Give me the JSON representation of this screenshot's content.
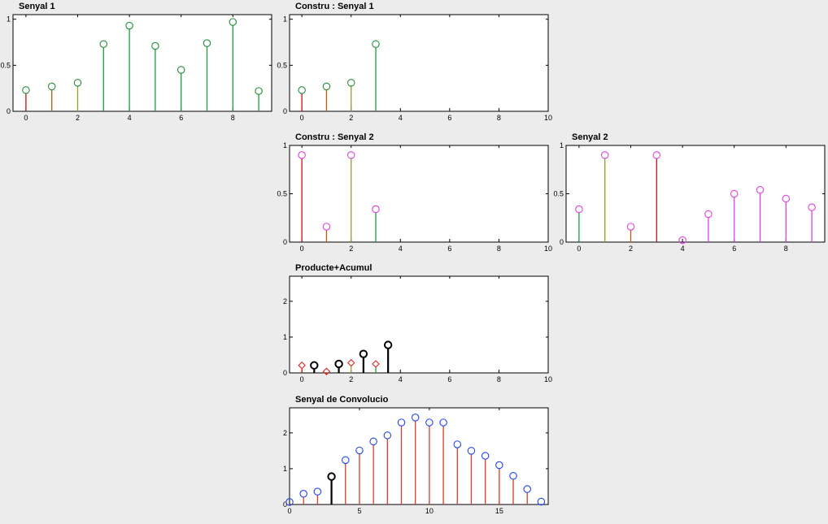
{
  "colors": {
    "green": "#1f8f3a",
    "magenta": "#e040e0",
    "blue": "#2244ee",
    "red_line": "#e03a2a",
    "black": "#000000",
    "red_marker": "#dd2222",
    "stem_palette": [
      "#cc1111",
      "#c05a10",
      "#99a020",
      "#1f9a3a"
    ]
  },
  "chart_data": [
    {
      "id": "senyal1",
      "type": "stem",
      "title": "Senyal 1",
      "xlim": [
        -0.5,
        9.5
      ],
      "ylim": [
        0,
        1.05
      ],
      "xticks": [
        0,
        2,
        4,
        6,
        8
      ],
      "yticks": [
        0,
        0.5,
        1
      ],
      "xtick_labels": [
        "0",
        "2",
        "4",
        "6",
        "8"
      ],
      "ytick_labels": [
        "0",
        "0.5",
        "1"
      ],
      "series": [
        {
          "marker": "circle",
          "marker_color": "#1f8f3a",
          "x": [
            0,
            1,
            2,
            3,
            4,
            5,
            6,
            7,
            8,
            9
          ],
          "y": [
            0.23,
            0.27,
            0.31,
            0.73,
            0.93,
            0.71,
            0.45,
            0.74,
            0.97,
            0.22
          ],
          "stem_colors": [
            "#cc1111",
            "#c05a10",
            "#99a020",
            "#1f9a3a",
            "#1f9a3a",
            "#1f9a3a",
            "#1f9a3a",
            "#1f9a3a",
            "#1f9a3a",
            "#1f9a3a"
          ]
        }
      ]
    },
    {
      "id": "constru1",
      "type": "stem",
      "title": "Constru : Senyal 1",
      "xlim": [
        -0.5,
        10
      ],
      "ylim": [
        0,
        1.05
      ],
      "xticks": [
        0,
        2,
        4,
        6,
        8,
        10
      ],
      "yticks": [
        0,
        0.5,
        1
      ],
      "xtick_labels": [
        "0",
        "2",
        "4",
        "6",
        "8",
        "10"
      ],
      "ytick_labels": [
        "0",
        "0.5",
        "1"
      ],
      "series": [
        {
          "marker": "circle",
          "marker_color": "#1f8f3a",
          "x": [
            0,
            1,
            2,
            3
          ],
          "y": [
            0.23,
            0.27,
            0.31,
            0.73
          ],
          "stem_colors": [
            "#cc1111",
            "#c05a10",
            "#99a020",
            "#1f9a3a"
          ]
        }
      ]
    },
    {
      "id": "constru2",
      "type": "stem",
      "title": "Constru : Senyal 2",
      "xlim": [
        -0.5,
        10
      ],
      "ylim": [
        0,
        1.0
      ],
      "xticks": [
        0,
        2,
        4,
        6,
        8,
        10
      ],
      "yticks": [
        0,
        0.5,
        1
      ],
      "xtick_labels": [
        "0",
        "2",
        "4",
        "6",
        "8",
        "10"
      ],
      "ytick_labels": [
        "0",
        "0.5",
        "1"
      ],
      "series": [
        {
          "marker": "circle",
          "marker_color": "#e040e0",
          "x": [
            0,
            1,
            2,
            3
          ],
          "y": [
            0.9,
            0.16,
            0.9,
            0.34
          ],
          "stem_colors": [
            "#cc1111",
            "#c05a10",
            "#99a020",
            "#1f9a3a"
          ]
        }
      ]
    },
    {
      "id": "senyal2",
      "type": "stem",
      "title": "Senyal 2",
      "xlim": [
        -0.5,
        9.5
      ],
      "ylim": [
        0,
        1.0
      ],
      "xticks": [
        0,
        2,
        4,
        6,
        8
      ],
      "yticks": [
        0,
        0.5,
        1
      ],
      "xtick_labels": [
        "0",
        "2",
        "4",
        "6",
        "8"
      ],
      "ytick_labels": [
        "0",
        "0.5",
        "1"
      ],
      "series": [
        {
          "marker": "circle",
          "marker_color": "#e040e0",
          "x": [
            0,
            1,
            2,
            3,
            4,
            5,
            6,
            7,
            8,
            9
          ],
          "y": [
            0.34,
            0.9,
            0.16,
            0.9,
            0.02,
            0.29,
            0.5,
            0.54,
            0.45,
            0.36
          ],
          "stem_colors": [
            "#1f9a3a",
            "#99a020",
            "#c05a10",
            "#cc1111",
            "#e040e0",
            "#e040e0",
            "#e040e0",
            "#e040e0",
            "#e040e0",
            "#e040e0"
          ]
        }
      ]
    },
    {
      "id": "producte",
      "type": "stem",
      "title": "Producte+Acumul",
      "xlim": [
        -0.5,
        10
      ],
      "ylim": [
        0,
        2.7
      ],
      "xticks": [
        0,
        2,
        4,
        6,
        8,
        10
      ],
      "yticks": [
        0,
        1,
        2
      ],
      "xtick_labels": [
        "0",
        "2",
        "4",
        "6",
        "8",
        "10"
      ],
      "ytick_labels": [
        "0",
        "1",
        "2"
      ],
      "series": [
        {
          "name": "producte",
          "marker": "diamond",
          "marker_color": "#dd2222",
          "x": [
            0,
            1,
            2,
            3
          ],
          "y": [
            0.21,
            0.04,
            0.28,
            0.25
          ],
          "stem_colors": [
            "#cc1111",
            "#c05a10",
            "#99a020",
            "#1f9a3a"
          ]
        },
        {
          "name": "acumul",
          "marker": "circle",
          "marker_color": "#000000",
          "bold": true,
          "x": [
            0.5,
            1.5,
            2.5,
            3.5
          ],
          "y": [
            0.21,
            0.25,
            0.53,
            0.78
          ],
          "stem_colors": [
            "#000000",
            "#000000",
            "#000000",
            "#000000"
          ]
        }
      ]
    },
    {
      "id": "convolucio",
      "type": "stem",
      "title": "Senyal de Convolucio",
      "xlim": [
        0,
        18.5
      ],
      "ylim": [
        0,
        2.7
      ],
      "xticks": [
        0,
        5,
        10,
        15
      ],
      "yticks": [
        0,
        1,
        2
      ],
      "xtick_labels": [
        "0",
        "5",
        "10",
        "15"
      ],
      "ytick_labels": [
        "0",
        "1",
        "2"
      ],
      "series": [
        {
          "marker": "circle",
          "marker_color": "#2244ee",
          "stem_color": "#e03a2a",
          "x": [
            0,
            1,
            2,
            3,
            4,
            5,
            6,
            7,
            8,
            9,
            10,
            11,
            12,
            13,
            14,
            15,
            16,
            17,
            18
          ],
          "y": [
            0.07,
            0.3,
            0.36,
            0.78,
            1.24,
            1.51,
            1.76,
            1.93,
            2.29,
            2.43,
            2.29,
            2.29,
            1.68,
            1.5,
            1.36,
            1.1,
            0.8,
            0.43,
            0.08
          ],
          "highlight": {
            "index": 3,
            "color": "#000000",
            "bold": true
          }
        }
      ]
    }
  ]
}
